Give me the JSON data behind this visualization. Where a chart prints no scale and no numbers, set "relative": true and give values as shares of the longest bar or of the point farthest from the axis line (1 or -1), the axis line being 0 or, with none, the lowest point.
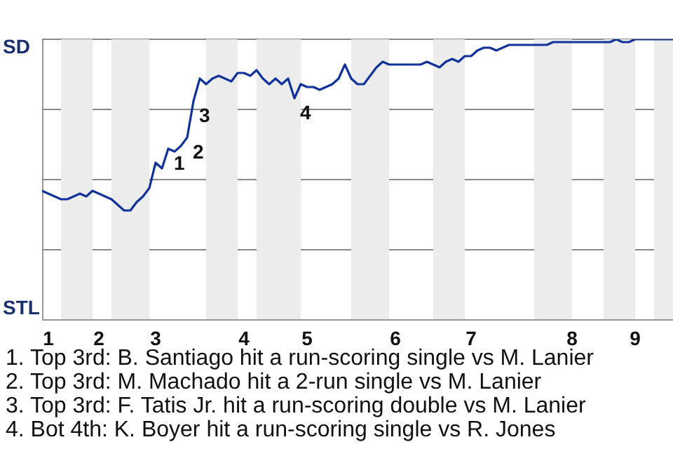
{
  "chart_data": {
    "type": "line",
    "relative": true,
    "grid": "y",
    "categories": [
      null,
      "1",
      null,
      null,
      null,
      null,
      null,
      null,
      null,
      "2",
      null,
      null,
      null,
      null,
      null,
      null,
      null,
      null,
      "3",
      null,
      null,
      null,
      null,
      null,
      null,
      null,
      null,
      null,
      null,
      null,
      null,
      null,
      "4",
      null,
      null,
      null,
      null,
      null,
      null,
      null,
      null,
      null,
      "5",
      null,
      null,
      null,
      null,
      null,
      null,
      null,
      null,
      null,
      null,
      null,
      null,
      null,
      "6",
      null,
      null,
      null,
      null,
      null,
      null,
      null,
      null,
      null,
      null,
      null,
      "7",
      null,
      null,
      null,
      null,
      null,
      null,
      null,
      null,
      null,
      null,
      null,
      null,
      null,
      null,
      null,
      "8",
      null,
      null,
      null,
      null,
      null,
      null,
      null,
      null,
      null,
      "9",
      null,
      null,
      null,
      null,
      null,
      null
    ],
    "series": [
      {
        "color": "#10329a",
        "values": [
          0.46,
          0.45,
          0.44,
          0.43,
          0.43,
          0.44,
          0.45,
          0.44,
          0.46,
          0.45,
          0.44,
          0.43,
          0.41,
          0.39,
          0.39,
          0.42,
          0.44,
          0.47,
          0.56,
          0.54,
          0.61,
          0.6,
          0.62,
          0.65,
          0.78,
          0.86,
          0.84,
          0.86,
          0.87,
          0.86,
          0.85,
          0.88,
          0.88,
          0.87,
          0.89,
          0.86,
          0.84,
          0.86,
          0.84,
          0.86,
          0.79,
          0.84,
          0.83,
          0.83,
          0.82,
          0.83,
          0.84,
          0.86,
          0.91,
          0.86,
          0.84,
          0.84,
          0.87,
          0.9,
          0.92,
          0.91,
          0.91,
          0.91,
          0.91,
          0.91,
          0.91,
          0.92,
          0.91,
          0.9,
          0.92,
          0.93,
          0.92,
          0.94,
          0.94,
          0.96,
          0.97,
          0.97,
          0.96,
          0.97,
          0.98,
          0.98,
          0.98,
          0.98,
          0.98,
          0.98,
          0.98,
          0.99,
          0.99,
          0.99,
          0.99,
          0.99,
          0.99,
          0.99,
          0.99,
          0.99,
          0.99,
          1.0,
          0.99,
          0.99,
          1.0,
          1.0,
          1.0,
          1.0,
          1.0,
          1.0,
          1.0
        ]
      }
    ],
    "annotations": [
      "SD",
      "STL",
      "1",
      "2",
      "3",
      "4",
      "1. Top 3rd: B. Santiago hit a run-scoring single vs M. Lanier",
      "2. Top 3rd: M. Machado hit a 2-run single vs M. Lanier",
      "3. Top 3rd: F. Tatis Jr. hit a run-scoring double vs M. Lanier",
      "4. Bot 4th: K. Boyer hit a run-scoring single vs R. Jones"
    ]
  }
}
